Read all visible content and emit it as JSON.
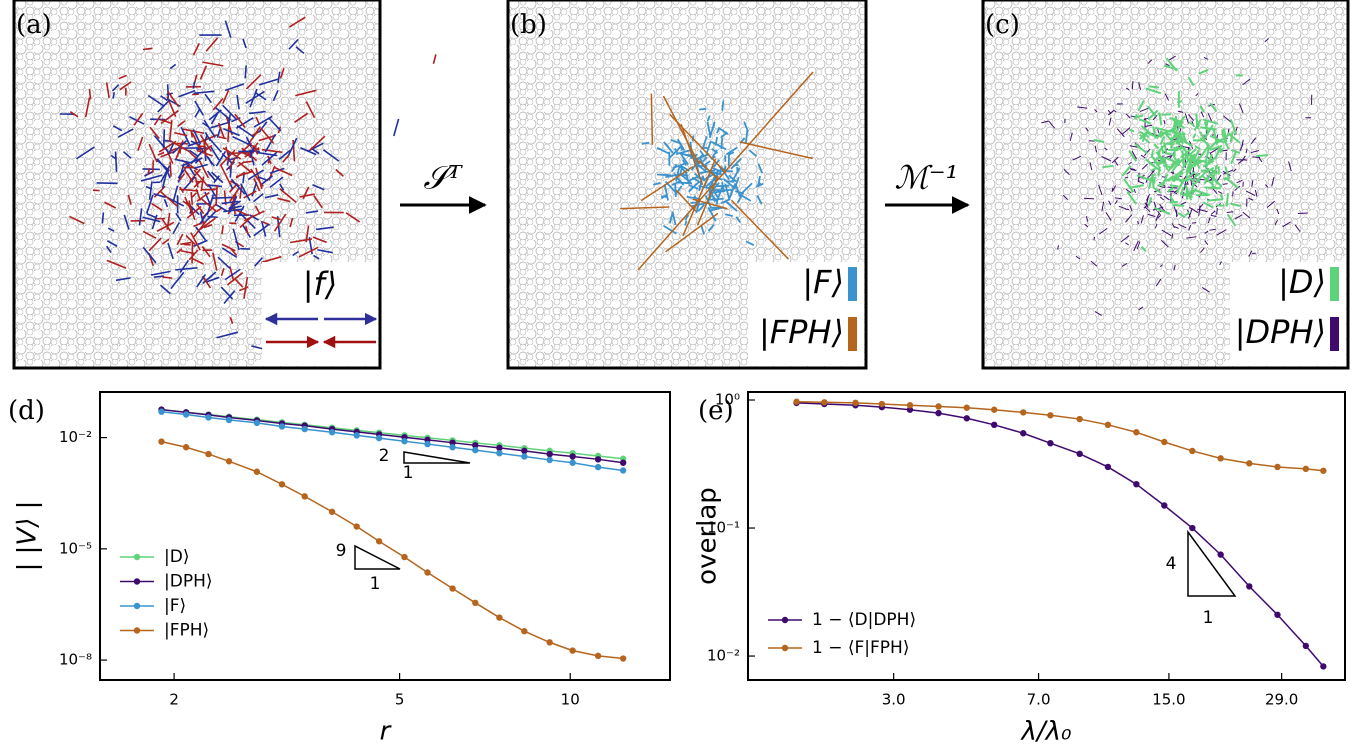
{
  "panels": [
    {
      "label": "(a)",
      "legend": [
        {
          "text": "|f⟩",
          "color": "#2f2f9a"
        }
      ]
    },
    {
      "label": "(b)",
      "legend": [
        {
          "text": "|F⟩",
          "color": "#3a93cf"
        },
        {
          "text": "|FPH⟩",
          "color": "#b5651d"
        }
      ]
    },
    {
      "label": "(c)",
      "legend": [
        {
          "text": "|D⟩",
          "color": "#5fd37a"
        },
        {
          "text": "|DPH⟩",
          "color": "#3f0a6e"
        }
      ]
    }
  ],
  "arrows": [
    "𝒮ᵀ",
    "ℳ⁻¹"
  ],
  "chart_data": [
    {
      "type": "line",
      "label": "(d)",
      "xlabel": "r",
      "ylabel": "| |V⟩ |",
      "xscale": "log",
      "yscale": "log",
      "xlim": [
        1.48,
        15
      ],
      "ylim": [
        2.9e-09,
        0.17
      ],
      "xticks": [
        2,
        5,
        10
      ],
      "yticks": [
        {
          "value": 1e-08,
          "label": "10⁻⁸"
        },
        {
          "value": 1e-05,
          "label": "10⁻⁵"
        },
        {
          "value": 0.01,
          "label": "10⁻²"
        }
      ],
      "legend": "lower left",
      "x": [
        1.9,
        2.1,
        2.3,
        2.5,
        2.8,
        3.1,
        3.4,
        3.8,
        4.2,
        4.6,
        5.1,
        5.6,
        6.2,
        6.8,
        7.5,
        8.3,
        9.2,
        10.1,
        11.2,
        12.4
      ],
      "series": [
        {
          "name": "|D⟩",
          "color": "#5fd37a",
          "values": [
            0.057,
            0.0485,
            0.0419,
            0.0366,
            0.0305,
            0.0258,
            0.0222,
            0.0185,
            0.0157,
            0.0136,
            0.0115,
            0.0099,
            0.0084,
            0.0072,
            0.0062,
            0.0052,
            0.0044,
            0.0038,
            0.0032,
            0.0027
          ]
        },
        {
          "name": "|DPH⟩",
          "color": "#3f0a6e",
          "values": [
            0.057,
            0.048,
            0.041,
            0.035,
            0.029,
            0.024,
            0.021,
            0.017,
            0.0143,
            0.0122,
            0.0102,
            0.0087,
            0.0073,
            0.0062,
            0.0053,
            0.0044,
            0.0036,
            0.0031,
            0.0026,
            0.0021
          ]
        },
        {
          "name": "|F⟩",
          "color": "#3a93cf",
          "values": [
            0.05,
            0.042,
            0.035,
            0.03,
            0.025,
            0.02,
            0.017,
            0.014,
            0.0115,
            0.0097,
            0.008,
            0.0067,
            0.0055,
            0.0046,
            0.0038,
            0.0031,
            0.0025,
            0.0021,
            0.0016,
            0.0013
          ]
        },
        {
          "name": "|FPH⟩",
          "color": "#b5651d",
          "values": [
            0.0078,
            0.0055,
            0.0036,
            0.0023,
            0.0012,
            0.00055,
            0.00026,
            0.0001,
            4e-05,
            1.6e-05,
            6e-06,
            2.3e-06,
            8.5e-07,
            3.5e-07,
            1.4e-07,
            6e-08,
            3e-08,
            1.8e-08,
            1.3e-08,
            1.1e-08
          ]
        }
      ],
      "annotations": [
        {
          "text": "2"
        },
        {
          "text": "1"
        },
        {
          "text": "9"
        },
        {
          "text": "1"
        }
      ]
    },
    {
      "type": "line",
      "label": "(e)",
      "xlabel": "λ/λ₀",
      "ylabel": "overlap",
      "xscale": "log",
      "yscale": "log",
      "xlim": [
        1.28,
        42
      ],
      "ylim": [
        0.0065,
        1.155
      ],
      "xticks": [
        {
          "value": 3,
          "label": "3.0"
        },
        {
          "value": 7,
          "label": "7.0"
        },
        {
          "value": 15,
          "label": "15.0"
        },
        {
          "value": 29,
          "label": "29.0"
        }
      ],
      "yticks": [
        {
          "value": 0.01,
          "label": "10⁻²"
        },
        {
          "value": 0.1,
          "label": "10⁻¹"
        },
        {
          "value": 1,
          "label": "10⁰"
        }
      ],
      "legend": "lower left",
      "x": [
        1.7,
        2.0,
        2.4,
        2.8,
        3.3,
        3.9,
        4.6,
        5.4,
        6.4,
        7.5,
        8.9,
        10.5,
        12.4,
        14.6,
        17.2,
        20.3,
        24,
        28.3,
        33.4,
        37
      ],
      "series": [
        {
          "name": "1 − ⟨D|DPH⟩",
          "color": "#3f0a6e",
          "values": [
            0.95,
            0.93,
            0.91,
            0.88,
            0.84,
            0.79,
            0.72,
            0.64,
            0.55,
            0.46,
            0.38,
            0.3,
            0.22,
            0.15,
            0.1,
            0.062,
            0.035,
            0.021,
            0.012,
            0.0083
          ]
        },
        {
          "name": "1 − ⟨F|FPH⟩",
          "color": "#b5651d",
          "values": [
            0.97,
            0.96,
            0.95,
            0.93,
            0.91,
            0.89,
            0.87,
            0.84,
            0.8,
            0.76,
            0.71,
            0.64,
            0.56,
            0.47,
            0.4,
            0.35,
            0.32,
            0.3,
            0.29,
            0.28
          ]
        }
      ],
      "annotations": [
        {
          "text": "4"
        },
        {
          "text": "1"
        }
      ]
    }
  ]
}
